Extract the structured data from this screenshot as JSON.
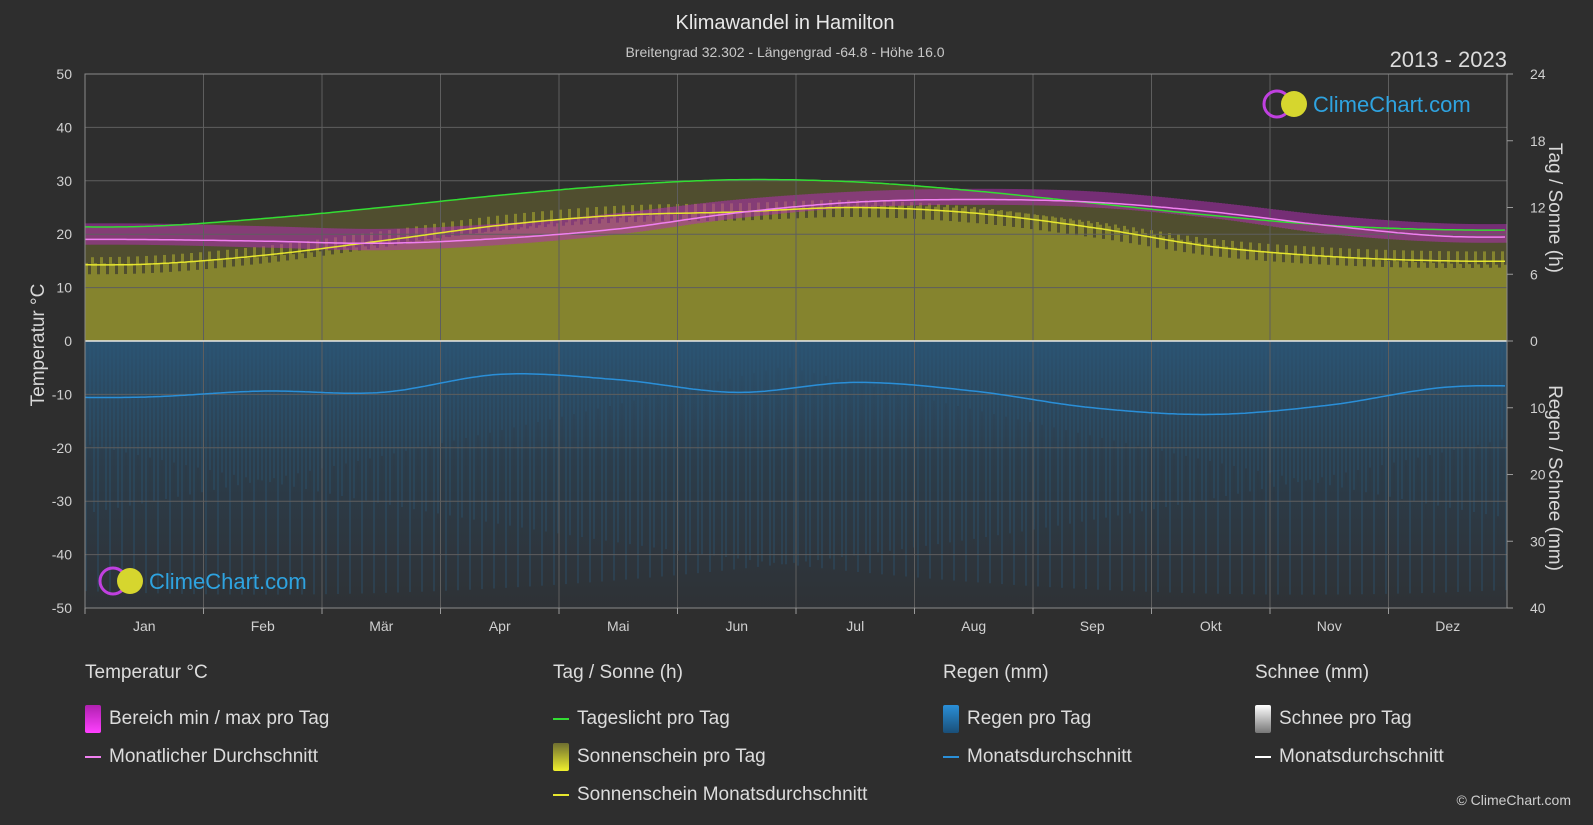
{
  "header": {
    "title": "Klimawandel in Hamilton",
    "subtitle": "Breitengrad 32.302 - Längengrad -64.8 - Höhe 16.0",
    "range": "2013 - 2023"
  },
  "logo_text": "ClimeChart.com",
  "copyright": "© ClimeChart.com",
  "chart_data": {
    "type": "line",
    "x": [
      "Jan",
      "Feb",
      "Mär",
      "Apr",
      "Mai",
      "Jun",
      "Jul",
      "Aug",
      "Sep",
      "Okt",
      "Nov",
      "Dez"
    ],
    "left_axis": {
      "label": "Temperatur °C",
      "ylim": [
        -50,
        50
      ],
      "ticks": [
        "50",
        "40",
        "30",
        "20",
        "10",
        "0",
        "-10",
        "-20",
        "-30",
        "-40",
        "-50"
      ]
    },
    "right_axis_top": {
      "label": "Tag / Sonne (h)",
      "ylim": [
        0,
        24
      ],
      "ticks": [
        "24",
        "18",
        "12",
        "6",
        "0"
      ]
    },
    "right_axis_bottom": {
      "label": "Regen / Schnee (mm)",
      "ylim": [
        0,
        40
      ],
      "ticks": [
        "0",
        "10",
        "20",
        "30",
        "40"
      ]
    },
    "grid": true,
    "series": [
      {
        "name": "Tageslicht pro Tag",
        "axis": "right_top",
        "color": "#33dd33",
        "values": [
          10.3,
          11.0,
          12.0,
          13.1,
          14.0,
          14.5,
          14.3,
          13.5,
          12.4,
          11.3,
          10.4,
          10.0
        ]
      },
      {
        "name": "Sonnenschein Monatsdurchschnitt",
        "axis": "right_top",
        "color": "#e6e62e",
        "values": [
          6.9,
          7.7,
          9.0,
          10.4,
          11.3,
          11.6,
          12.0,
          11.5,
          10.2,
          8.5,
          7.6,
          7.2
        ]
      },
      {
        "name": "Monatlicher Durchschnitt",
        "axis": "left",
        "color": "#f080f0",
        "values": [
          19.0,
          18.7,
          18.3,
          19.2,
          21.0,
          24.0,
          26.0,
          26.5,
          26.0,
          24.2,
          21.6,
          19.6
        ]
      },
      {
        "name": "Monatsdurchschnitt (Regen)",
        "axis": "right_bottom",
        "color": "#2a8fd8",
        "values": [
          8.4,
          7.5,
          7.7,
          5.0,
          5.8,
          7.7,
          6.2,
          7.5,
          10.0,
          11.0,
          9.6,
          6.9
        ]
      },
      {
        "name": "Bereich min / max pro Tag",
        "axis": "left",
        "color": "#c030c0",
        "min": [
          18.0,
          17.5,
          17.0,
          18.0,
          20.0,
          23.0,
          25.0,
          25.5,
          25.0,
          23.0,
          20.0,
          18.5
        ],
        "max": [
          22.0,
          21.5,
          21.0,
          22.0,
          24.0,
          26.5,
          28.0,
          28.5,
          28.0,
          26.0,
          23.5,
          22.0
        ]
      }
    ]
  },
  "legend": {
    "temperature": {
      "heading": "Temperatur °C",
      "items": [
        "Bereich min / max pro Tag",
        "Monatlicher Durchschnitt"
      ]
    },
    "daysun": {
      "heading": "Tag / Sonne (h)",
      "items": [
        "Tageslicht pro Tag",
        "Sonnenschein pro Tag",
        "Sonnenschein Monatsdurchschnitt"
      ]
    },
    "rain": {
      "heading": "Regen (mm)",
      "items": [
        "Regen pro Tag",
        "Monatsdurchschnitt"
      ]
    },
    "snow": {
      "heading": "Schnee (mm)",
      "items": [
        "Schnee pro Tag",
        "Monatsdurchschnitt"
      ]
    }
  },
  "colors": {
    "daylight": "#33dd33",
    "sunshine": "#e6e62e",
    "temp_avg": "#f080f0",
    "temp_range": "#c030c0",
    "rain": "#2a8fd8",
    "snow": "#ffffff"
  }
}
